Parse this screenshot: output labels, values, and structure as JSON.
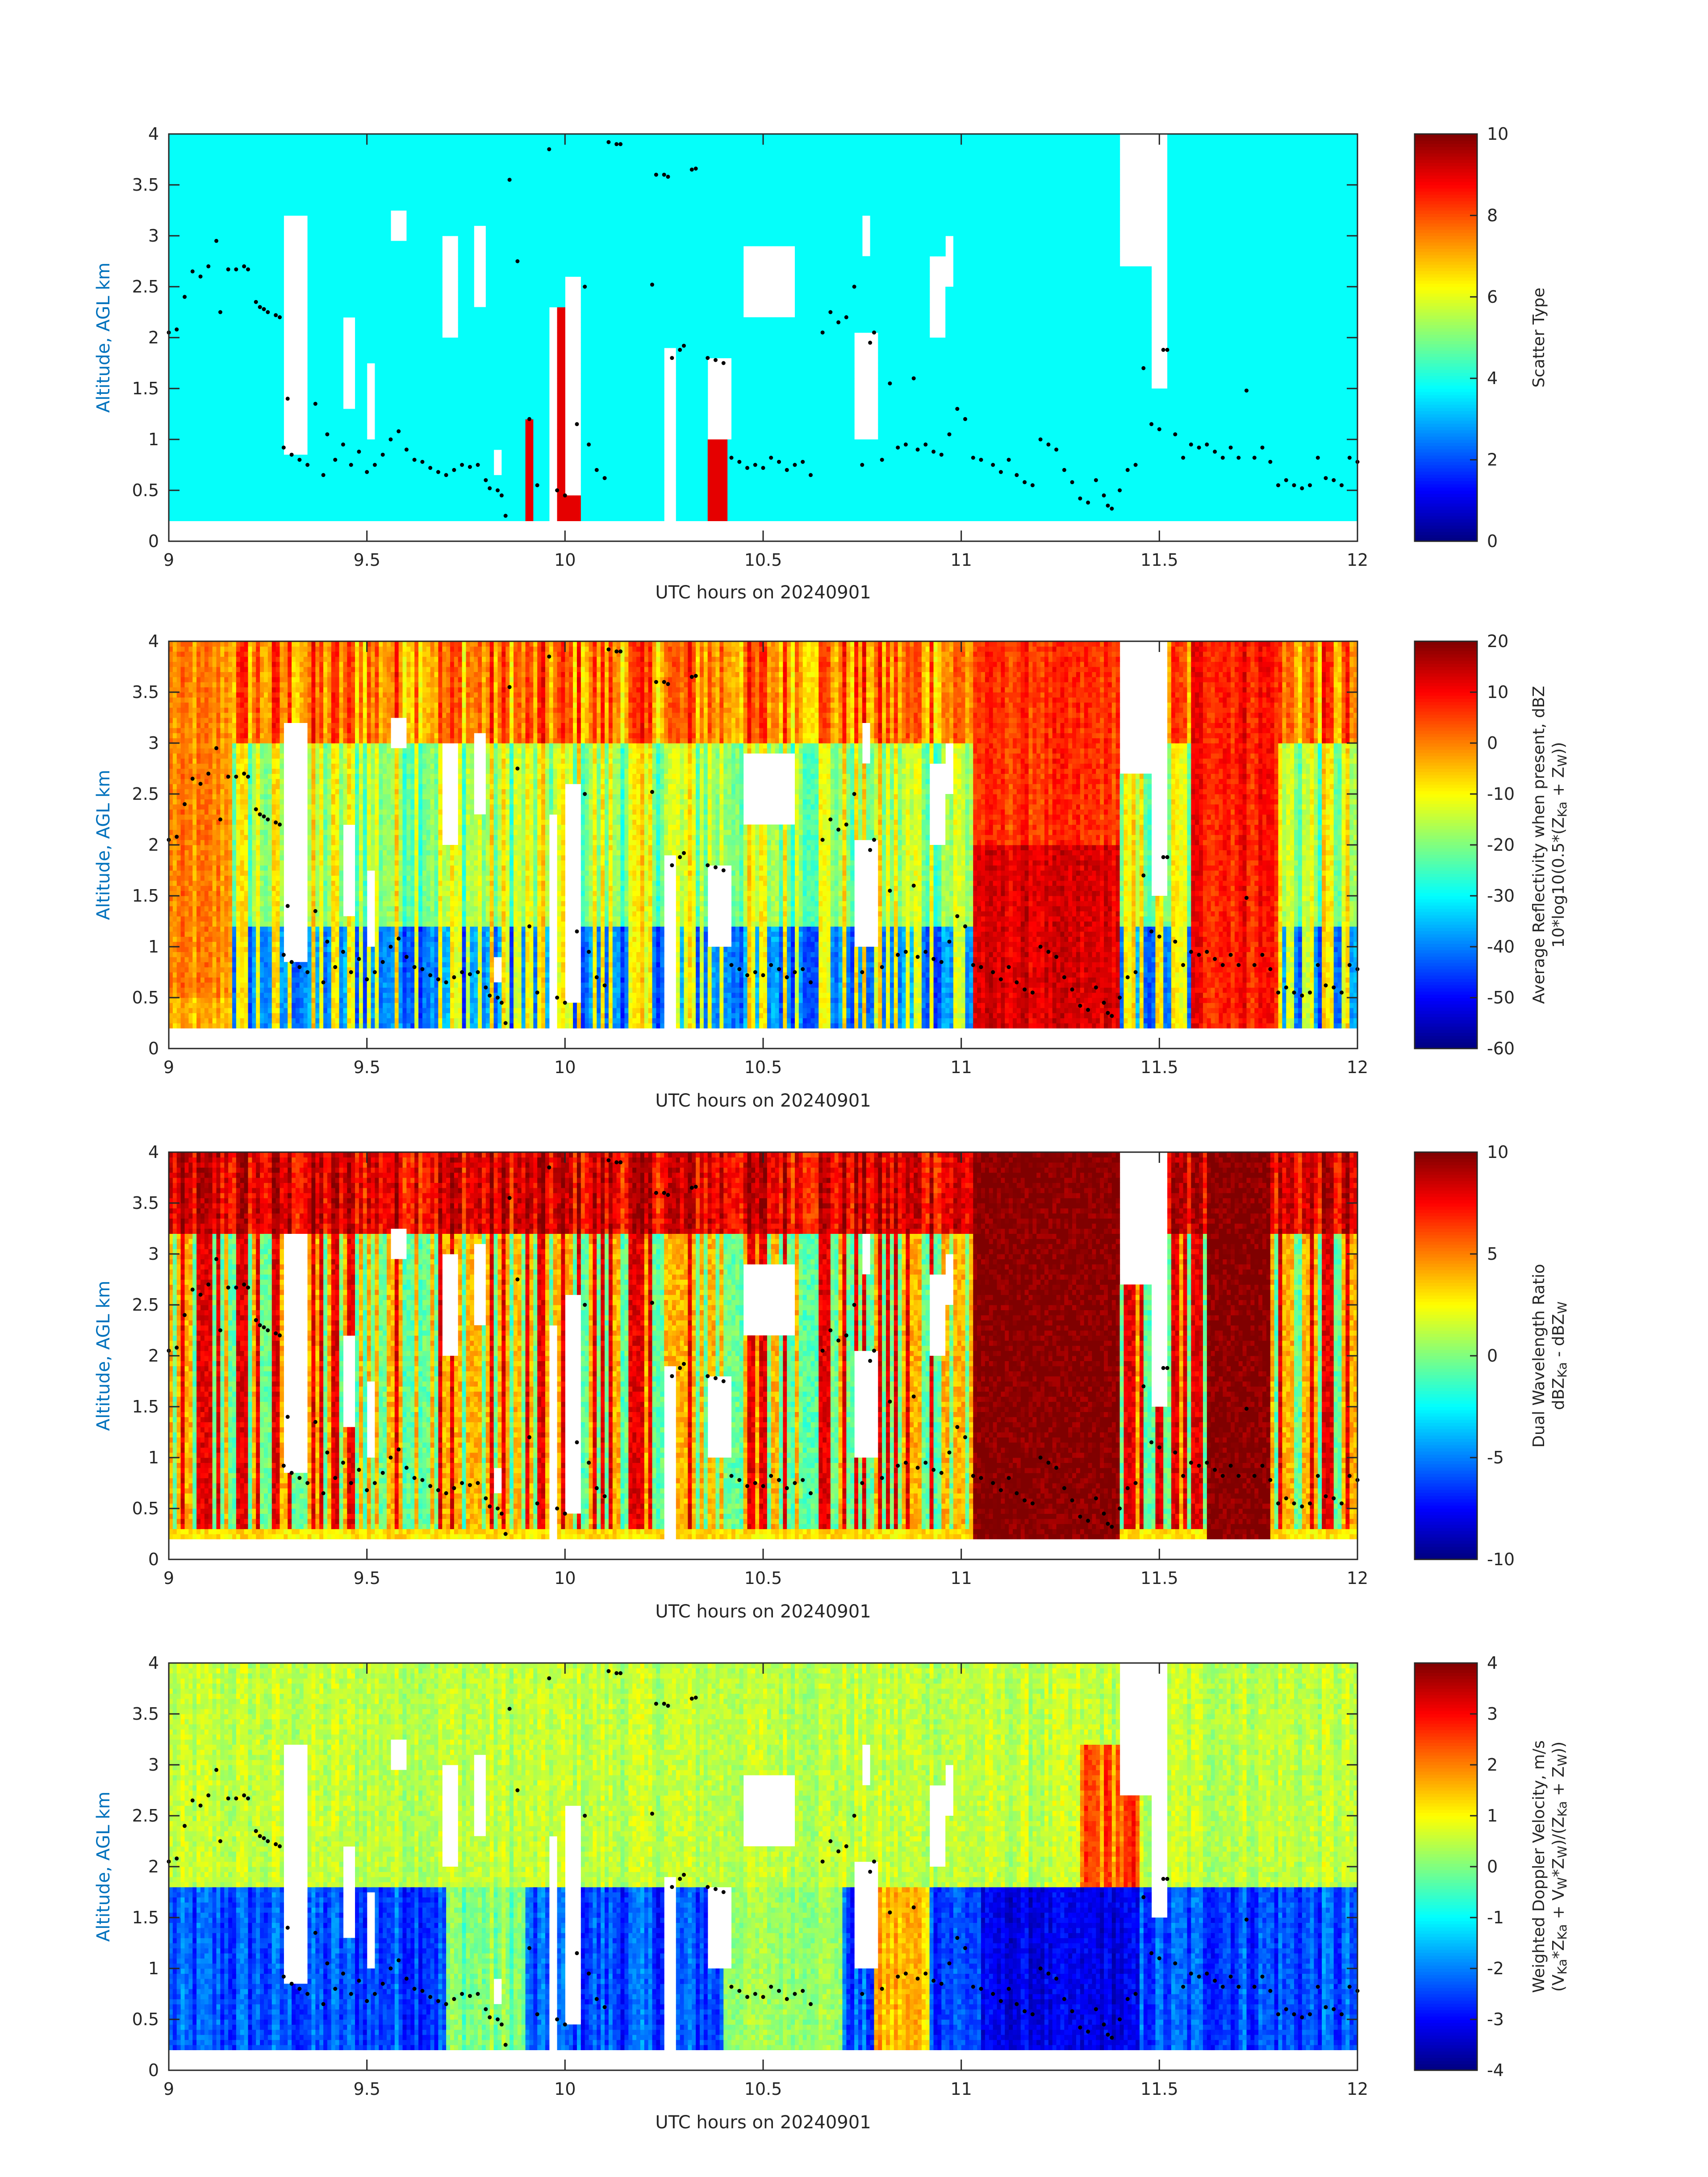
{
  "chart_data": [
    {
      "type": "heatmap",
      "xlabel": "UTC hours on 20240901",
      "ylabel": "Altitude, AGL km",
      "xlim": [
        9,
        12
      ],
      "ylim": [
        0,
        4
      ],
      "xticks": [
        "9",
        "9.5",
        "10",
        "10.5",
        "11",
        "11.5",
        "12"
      ],
      "yticks": [
        "0",
        "0.5",
        "1",
        "1.5",
        "2",
        "2.5",
        "3",
        "3.5",
        "4"
      ],
      "colorbar": {
        "label_lines": [
          "Scatter Type"
        ],
        "clim": [
          0,
          10
        ],
        "ticks": [
          "0",
          "2",
          "4",
          "6",
          "8",
          "10"
        ],
        "colormap": "jet"
      },
      "field": "scatter_type"
    },
    {
      "type": "heatmap",
      "xlabel": "UTC hours on 20240901",
      "ylabel": "Altitude, AGL km",
      "xlim": [
        9,
        12
      ],
      "ylim": [
        0,
        4
      ],
      "xticks": [
        "9",
        "9.5",
        "10",
        "10.5",
        "11",
        "11.5",
        "12"
      ],
      "yticks": [
        "0",
        "0.5",
        "1",
        "1.5",
        "2",
        "2.5",
        "3",
        "3.5",
        "4"
      ],
      "colorbar": {
        "label_lines": [
          "Average Reflectivity when present, dBZ",
          "10*log10(0.5*(Z_Ka + Z_W))"
        ],
        "clim": [
          -60,
          20
        ],
        "ticks": [
          "-60",
          "-50",
          "-40",
          "-30",
          "-20",
          "-10",
          "0",
          "10",
          "20"
        ],
        "colormap": "jet"
      },
      "field": "reflectivity"
    },
    {
      "type": "heatmap",
      "xlabel": "UTC hours on 20240901",
      "ylabel": "Altitude, AGL km",
      "xlim": [
        9,
        12
      ],
      "ylim": [
        0,
        4
      ],
      "xticks": [
        "9",
        "9.5",
        "10",
        "10.5",
        "11",
        "11.5",
        "12"
      ],
      "yticks": [
        "0",
        "0.5",
        "1",
        "1.5",
        "2",
        "2.5",
        "3",
        "3.5",
        "4"
      ],
      "colorbar": {
        "label_lines": [
          "Dual Wavelength Ratio",
          "dBZ_Ka - dBZ_W"
        ],
        "clim": [
          -10,
          10
        ],
        "ticks": [
          "-10",
          "-5",
          "0",
          "5",
          "10"
        ],
        "colormap": "jet"
      },
      "field": "dwr"
    },
    {
      "type": "heatmap",
      "xlabel": "UTC hours on 20240901",
      "ylabel": "Altitude, AGL km",
      "xlim": [
        9,
        12
      ],
      "ylim": [
        0,
        4
      ],
      "xticks": [
        "9",
        "9.5",
        "10",
        "10.5",
        "11",
        "11.5",
        "12"
      ],
      "yticks": [
        "0",
        "0.5",
        "1",
        "1.5",
        "2",
        "2.5",
        "3",
        "3.5",
        "4"
      ],
      "colorbar": {
        "label_lines": [
          "Weighted Doppler Velocity, m/s",
          "(V_Ka*Z_Ka + V_W*Z_W)/(Z_Ka + Z_W))"
        ],
        "clim": [
          -4,
          4
        ],
        "ticks": [
          "-4",
          "-3",
          "-2",
          "-1",
          "0",
          "1",
          "2",
          "3",
          "4"
        ],
        "colormap": "jet"
      },
      "field": "velocity"
    }
  ],
  "overlay_dots": [
    [
      9.0,
      2.05
    ],
    [
      9.02,
      2.08
    ],
    [
      9.04,
      2.4
    ],
    [
      9.06,
      2.65
    ],
    [
      9.08,
      2.6
    ],
    [
      9.1,
      2.7
    ],
    [
      9.12,
      2.95
    ],
    [
      9.13,
      2.25
    ],
    [
      9.15,
      2.67
    ],
    [
      9.17,
      2.67
    ],
    [
      9.19,
      2.7
    ],
    [
      9.2,
      2.67
    ],
    [
      9.22,
      2.35
    ],
    [
      9.23,
      2.3
    ],
    [
      9.24,
      2.28
    ],
    [
      9.25,
      2.25
    ],
    [
      9.27,
      2.22
    ],
    [
      9.28,
      2.2
    ],
    [
      9.29,
      0.92
    ],
    [
      9.3,
      1.4
    ],
    [
      9.31,
      0.85
    ],
    [
      9.33,
      0.8
    ],
    [
      9.35,
      0.75
    ],
    [
      9.37,
      1.35
    ],
    [
      9.39,
      0.65
    ],
    [
      9.4,
      1.05
    ],
    [
      9.42,
      0.8
    ],
    [
      9.44,
      0.95
    ],
    [
      9.46,
      0.75
    ],
    [
      9.48,
      0.88
    ],
    [
      9.5,
      0.68
    ],
    [
      9.52,
      0.75
    ],
    [
      9.54,
      0.85
    ],
    [
      9.56,
      1.0
    ],
    [
      9.58,
      1.08
    ],
    [
      9.6,
      0.9
    ],
    [
      9.62,
      0.8
    ],
    [
      9.64,
      0.78
    ],
    [
      9.66,
      0.72
    ],
    [
      9.68,
      0.68
    ],
    [
      9.7,
      0.65
    ],
    [
      9.72,
      0.7
    ],
    [
      9.74,
      0.75
    ],
    [
      9.76,
      0.73
    ],
    [
      9.78,
      0.75
    ],
    [
      9.8,
      0.6
    ],
    [
      9.81,
      0.52
    ],
    [
      9.83,
      0.5
    ],
    [
      9.84,
      0.45
    ],
    [
      9.85,
      0.25
    ],
    [
      9.86,
      3.55
    ],
    [
      9.88,
      2.75
    ],
    [
      9.91,
      1.2
    ],
    [
      9.93,
      0.55
    ],
    [
      9.96,
      3.85
    ],
    [
      9.98,
      0.5
    ],
    [
      10.0,
      0.45
    ],
    [
      10.03,
      1.15
    ],
    [
      10.05,
      2.5
    ],
    [
      10.06,
      0.95
    ],
    [
      10.08,
      0.7
    ],
    [
      10.1,
      0.62
    ],
    [
      10.11,
      3.92
    ],
    [
      10.13,
      3.9
    ],
    [
      10.14,
      3.9
    ],
    [
      10.22,
      2.52
    ],
    [
      10.23,
      3.6
    ],
    [
      10.25,
      3.6
    ],
    [
      10.26,
      3.58
    ],
    [
      10.27,
      1.8
    ],
    [
      10.29,
      1.88
    ],
    [
      10.3,
      1.92
    ],
    [
      10.32,
      3.65
    ],
    [
      10.33,
      3.66
    ],
    [
      10.36,
      1.8
    ],
    [
      10.38,
      1.78
    ],
    [
      10.4,
      1.75
    ],
    [
      10.42,
      0.82
    ],
    [
      10.44,
      0.78
    ],
    [
      10.46,
      0.72
    ],
    [
      10.48,
      0.75
    ],
    [
      10.5,
      0.72
    ],
    [
      10.52,
      0.82
    ],
    [
      10.54,
      0.78
    ],
    [
      10.56,
      0.7
    ],
    [
      10.58,
      0.75
    ],
    [
      10.6,
      0.78
    ],
    [
      10.62,
      0.65
    ],
    [
      10.65,
      2.05
    ],
    [
      10.67,
      2.25
    ],
    [
      10.69,
      2.15
    ],
    [
      10.71,
      2.2
    ],
    [
      10.73,
      2.5
    ],
    [
      10.75,
      0.75
    ],
    [
      10.77,
      1.95
    ],
    [
      10.78,
      2.05
    ],
    [
      10.8,
      0.8
    ],
    [
      10.82,
      1.55
    ],
    [
      10.84,
      0.92
    ],
    [
      10.86,
      0.95
    ],
    [
      10.88,
      1.6
    ],
    [
      10.89,
      0.9
    ],
    [
      10.91,
      0.95
    ],
    [
      10.93,
      0.88
    ],
    [
      10.95,
      0.85
    ],
    [
      10.97,
      1.05
    ],
    [
      10.99,
      1.3
    ],
    [
      11.01,
      1.2
    ],
    [
      11.03,
      0.82
    ],
    [
      11.05,
      0.8
    ],
    [
      11.08,
      0.75
    ],
    [
      11.1,
      0.68
    ],
    [
      11.12,
      0.8
    ],
    [
      11.14,
      0.65
    ],
    [
      11.16,
      0.58
    ],
    [
      11.18,
      0.55
    ],
    [
      11.2,
      1.0
    ],
    [
      11.22,
      0.95
    ],
    [
      11.24,
      0.9
    ],
    [
      11.26,
      0.7
    ],
    [
      11.28,
      0.58
    ],
    [
      11.3,
      0.42
    ],
    [
      11.32,
      0.38
    ],
    [
      11.34,
      0.6
    ],
    [
      11.36,
      0.45
    ],
    [
      11.37,
      0.35
    ],
    [
      11.38,
      0.32
    ],
    [
      11.4,
      0.5
    ],
    [
      11.42,
      0.7
    ],
    [
      11.44,
      0.75
    ],
    [
      11.46,
      1.7
    ],
    [
      11.48,
      1.15
    ],
    [
      11.5,
      1.1
    ],
    [
      11.51,
      1.88
    ],
    [
      11.52,
      1.88
    ],
    [
      11.54,
      1.05
    ],
    [
      11.56,
      0.82
    ],
    [
      11.58,
      0.95
    ],
    [
      11.6,
      0.92
    ],
    [
      11.62,
      0.95
    ],
    [
      11.64,
      0.88
    ],
    [
      11.66,
      0.82
    ],
    [
      11.68,
      0.92
    ],
    [
      11.7,
      0.82
    ],
    [
      11.72,
      1.48
    ],
    [
      11.74,
      0.82
    ],
    [
      11.76,
      0.92
    ],
    [
      11.78,
      0.78
    ],
    [
      11.8,
      0.55
    ],
    [
      11.82,
      0.6
    ],
    [
      11.84,
      0.55
    ],
    [
      11.86,
      0.52
    ],
    [
      11.88,
      0.55
    ],
    [
      11.9,
      0.82
    ],
    [
      11.92,
      0.62
    ],
    [
      11.94,
      0.6
    ],
    [
      11.96,
      0.55
    ],
    [
      11.98,
      0.82
    ],
    [
      12.0,
      0.78
    ]
  ]
}
